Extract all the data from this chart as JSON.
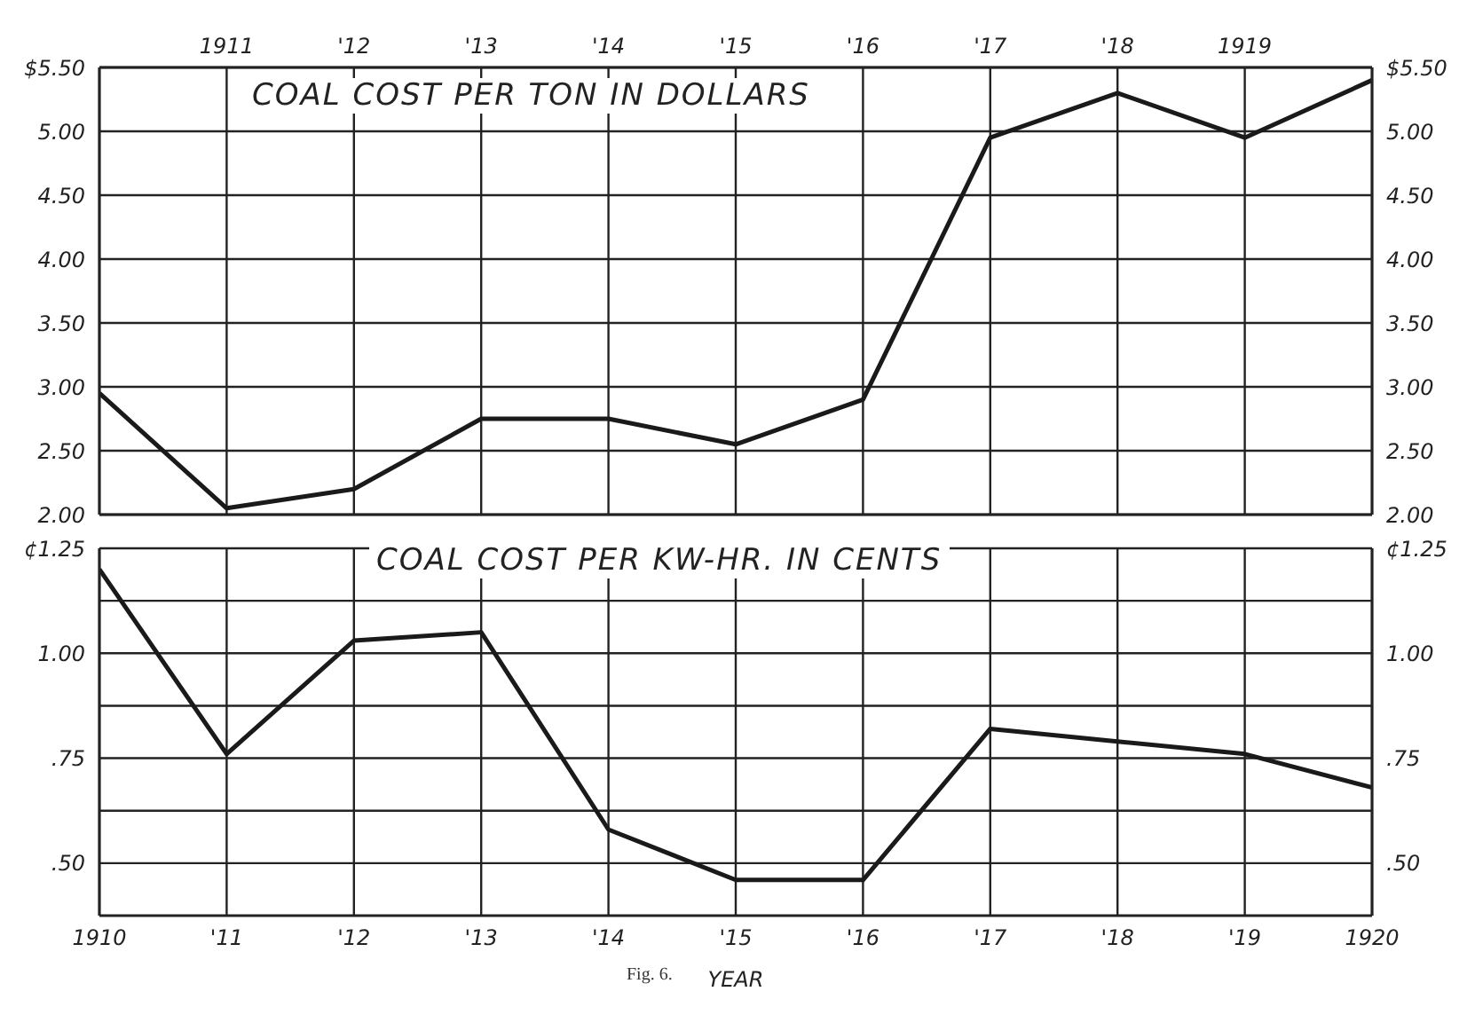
{
  "chart_data": [
    {
      "type": "line",
      "title": "COAL COST PER TON IN DOLLARS",
      "x": [
        1910,
        1911,
        1912,
        1913,
        1914,
        1915,
        1916,
        1917,
        1918,
        1919,
        1920
      ],
      "series": [
        {
          "color": "#1a1a1a",
          "values": [
            2.95,
            2.05,
            2.2,
            2.75,
            2.75,
            2.55,
            2.9,
            4.95,
            5.3,
            4.95,
            5.4
          ]
        }
      ],
      "xlim": [
        1910,
        1920
      ],
      "xticks": [
        1910,
        1911,
        1912,
        1913,
        1914,
        1915,
        1916,
        1917,
        1918,
        1919,
        1920
      ],
      "x2lim": [
        1910,
        1920
      ],
      "x2ticks": [
        {
          "value": 1911,
          "label": "1911"
        },
        {
          "value": 1912,
          "label": "'12"
        },
        {
          "value": 1913,
          "label": "'13"
        },
        {
          "value": 1914,
          "label": "'14"
        },
        {
          "value": 1915,
          "label": "'15"
        },
        {
          "value": 1916,
          "label": "'16"
        },
        {
          "value": 1917,
          "label": "'17"
        },
        {
          "value": 1918,
          "label": "'18"
        },
        {
          "value": 1919,
          "label": "1919"
        }
      ],
      "ylim": [
        2,
        5.5
      ],
      "yticks": [
        {
          "value": 2,
          "label": "2.00"
        },
        {
          "value": 2.5,
          "label": "2.50"
        },
        {
          "value": 3,
          "label": "3.00"
        },
        {
          "value": 3.5,
          "label": "3.50"
        },
        {
          "value": 4,
          "label": "4.00"
        },
        {
          "value": 4.5,
          "label": "4.50"
        },
        {
          "value": 5,
          "label": "5.00"
        },
        {
          "value": 5.5,
          "label": "$5.50"
        }
      ],
      "y2lim": [
        2,
        5.5
      ],
      "y2ticks": [
        {
          "value": 2,
          "label": "2.00"
        },
        {
          "value": 2.5,
          "label": "2.50"
        },
        {
          "value": 3,
          "label": "3.00"
        },
        {
          "value": 3.5,
          "label": "3.50"
        },
        {
          "value": 4,
          "label": "4.00"
        },
        {
          "value": 4.5,
          "label": "4.50"
        },
        {
          "value": 5,
          "label": "5.00"
        },
        {
          "value": 5.5,
          "label": "$5.50"
        }
      ],
      "tick_labels": "y",
      "grid": true,
      "legend": false
    },
    {
      "type": "line",
      "title": "COAL COST PER KW-HR. IN CENTS",
      "xlabel": "YEAR",
      "annotations": [
        "Fig. 6."
      ],
      "x": [
        1910,
        1911,
        1912,
        1913,
        1914,
        1915,
        1916,
        1917,
        1918,
        1919,
        1920
      ],
      "series": [
        {
          "color": "#1a1a1a",
          "values": [
            1.2,
            0.76,
            1.03,
            1.05,
            0.58,
            0.46,
            0.46,
            0.82,
            0.79,
            0.76,
            0.68
          ]
        }
      ],
      "xlim": [
        1910,
        1920
      ],
      "xticks": [
        {
          "value": 1910,
          "label": "1910"
        },
        {
          "value": 1911,
          "label": "'11"
        },
        {
          "value": 1912,
          "label": "'12"
        },
        {
          "value": 1913,
          "label": "'13"
        },
        {
          "value": 1914,
          "label": "'14"
        },
        {
          "value": 1915,
          "label": "'15"
        },
        {
          "value": 1916,
          "label": "'16"
        },
        {
          "value": 1917,
          "label": "'17"
        },
        {
          "value": 1918,
          "label": "'18"
        },
        {
          "value": 1919,
          "label": "'19"
        },
        {
          "value": 1920,
          "label": "1920"
        }
      ],
      "ylim": [
        0.375,
        1.25
      ],
      "yticks": [
        {
          "value": 0.5,
          "label": ".50"
        },
        {
          "value": 0.625,
          "label": null
        },
        {
          "value": 0.75,
          "label": ".75"
        },
        {
          "value": 0.875,
          "label": null
        },
        {
          "value": 1,
          "label": "1.00"
        },
        {
          "value": 1.125,
          "label": null
        },
        {
          "value": 1.25,
          "label": "¢1.25"
        }
      ],
      "y2lim": [
        0.375,
        1.25
      ],
      "y2ticks": [
        {
          "value": 0.5,
          "label": ".50"
        },
        {
          "value": 0.625,
          "label": null
        },
        {
          "value": 0.75,
          "label": ".75"
        },
        {
          "value": 0.875,
          "label": null
        },
        {
          "value": 1,
          "label": "1.00"
        },
        {
          "value": 1.125,
          "label": null
        },
        {
          "value": 1.25,
          "label": "¢1.25"
        }
      ],
      "grid": true,
      "legend": false
    }
  ]
}
